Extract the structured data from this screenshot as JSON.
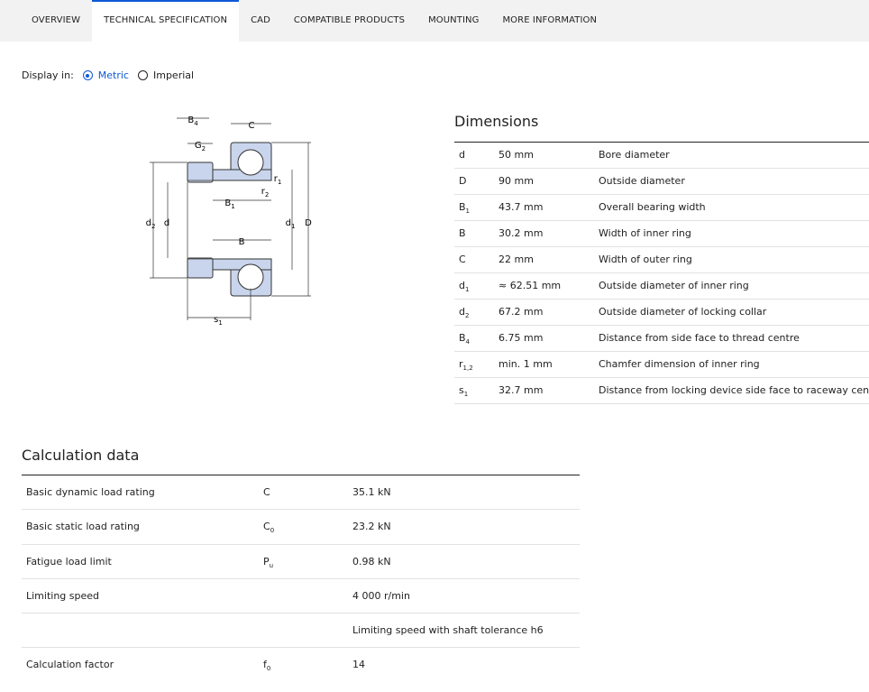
{
  "tabs": [
    {
      "label": "OVERVIEW",
      "active": false
    },
    {
      "label": "TECHNICAL SPECIFICATION",
      "active": true
    },
    {
      "label": "CAD",
      "active": false
    },
    {
      "label": "COMPATIBLE PRODUCTS",
      "active": false
    },
    {
      "label": "MOUNTING",
      "active": false
    },
    {
      "label": "MORE INFORMATION",
      "active": false
    }
  ],
  "display": {
    "label": "Display in:",
    "options": [
      {
        "label": "Metric",
        "selected": true
      },
      {
        "label": "Imperial",
        "selected": false
      }
    ]
  },
  "diagram": {
    "labels": [
      {
        "text": "B",
        "sub": "4"
      },
      {
        "text": "G",
        "sub": "2"
      },
      {
        "text": "C"
      },
      {
        "text": "r",
        "sub": "1"
      },
      {
        "text": "r",
        "sub": "2"
      },
      {
        "text": "B",
        "sub": "1"
      },
      {
        "text": "d",
        "sub": "2"
      },
      {
        "text": "d"
      },
      {
        "text": "d",
        "sub": "1"
      },
      {
        "text": "D"
      },
      {
        "text": "B"
      },
      {
        "text": "s",
        "sub": "1"
      }
    ]
  },
  "dimensions": {
    "title": "Dimensions",
    "rows": [
      {
        "symbol": "d",
        "value": "50 mm",
        "description": "Bore diameter"
      },
      {
        "symbol": "D",
        "value": "90 mm",
        "description": "Outside diameter"
      },
      {
        "symbol": "B",
        "sub": "1",
        "value": "43.7 mm",
        "description": "Overall bearing width"
      },
      {
        "symbol": "B",
        "value": "30.2 mm",
        "description": "Width of inner ring"
      },
      {
        "symbol": "C",
        "value": "22 mm",
        "description": "Width of outer ring"
      },
      {
        "symbol": "d",
        "sub": "1",
        "value": "≈ 62.51 mm",
        "description": "Outside diameter of inner ring"
      },
      {
        "symbol": "d",
        "sub": "2",
        "value": "67.2 mm",
        "description": "Outside diameter of locking collar"
      },
      {
        "symbol": "B",
        "sub": "4",
        "value": "6.75 mm",
        "description": "Distance from side face to thread centre"
      },
      {
        "symbol": "r",
        "sub": "1,2",
        "value": "min. 1 mm",
        "description": "Chamfer dimension of inner ring"
      },
      {
        "symbol": "s",
        "sub": "1",
        "value": "32.7 mm",
        "description": "Distance from locking device side face to raceway centre"
      }
    ]
  },
  "calculation": {
    "title": "Calculation data",
    "rows": [
      {
        "name": "Basic dynamic load rating",
        "symbol": "C",
        "value": "35.1 kN"
      },
      {
        "name": "Basic static load rating",
        "symbol": "C",
        "sub": "0",
        "value": "23.2 kN"
      },
      {
        "name": "Fatigue load limit",
        "symbol": "P",
        "sub": "u",
        "value": "0.98 kN"
      },
      {
        "name": "Limiting speed",
        "value": "4 000 r/min"
      },
      {
        "value": "Limiting speed with shaft tolerance h6"
      },
      {
        "name": "Calculation factor",
        "symbol": "f",
        "sub": "0",
        "value": "14"
      }
    ]
  }
}
